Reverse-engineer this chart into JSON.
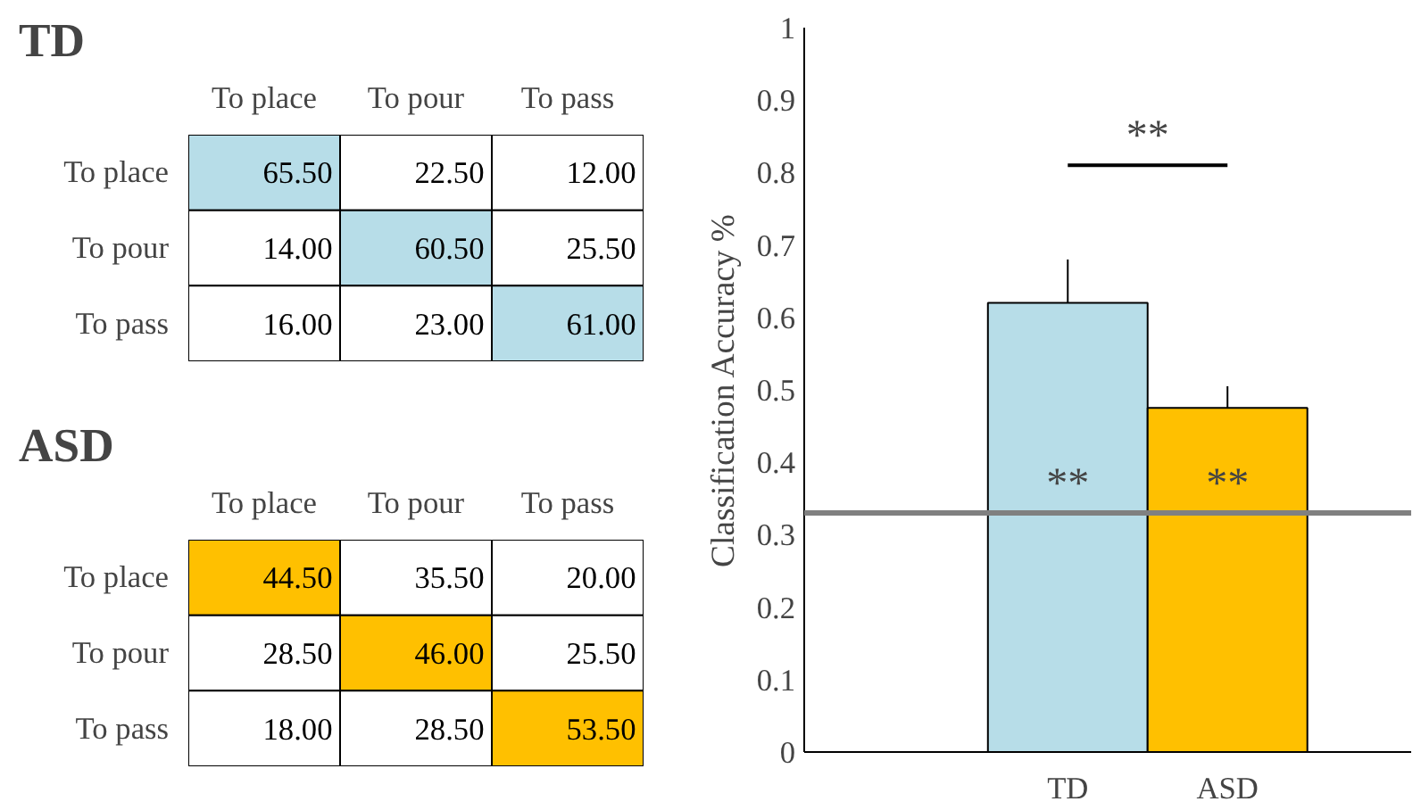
{
  "chart_data": [
    {
      "type": "heatmap",
      "title": "TD",
      "categories": [
        "To place",
        "To pour",
        "To pass"
      ],
      "y_categories": [
        "To place",
        "To pour",
        "To pass"
      ],
      "cells": [
        [
          65.5,
          22.5,
          12.0
        ],
        [
          14.0,
          60.5,
          25.5
        ],
        [
          16.0,
          23.0,
          61.0
        ]
      ],
      "color": "#b7dde8",
      "cell_labels": [
        [
          "65.50",
          "22.50",
          "12.00"
        ],
        [
          "14.00",
          "60.50",
          "25.50"
        ],
        [
          "16.00",
          "23.00",
          "61.00"
        ]
      ]
    },
    {
      "type": "heatmap",
      "title": "ASD",
      "categories": [
        "To place",
        "To pour",
        "To pass"
      ],
      "y_categories": [
        "To place",
        "To pour",
        "To pass"
      ],
      "cells": [
        [
          44.5,
          35.5,
          20.0
        ],
        [
          28.5,
          46.0,
          25.5
        ],
        [
          18.0,
          28.5,
          53.5
        ]
      ],
      "color": "#ffc000",
      "cell_labels": [
        [
          "44.50",
          "35.50",
          "20.00"
        ],
        [
          "28.50",
          "46.00",
          "25.50"
        ],
        [
          "18.00",
          "28.50",
          "53.50"
        ]
      ]
    },
    {
      "type": "bar",
      "ylabel": "Classification Accuracy %",
      "categories": [
        "TD",
        "ASD"
      ],
      "values": [
        0.62,
        0.475
      ],
      "colors": [
        "#b7dde8",
        "#ffc000"
      ],
      "errors": [
        0.06,
        0.03
      ],
      "ylim": [
        0,
        1
      ],
      "yticks": [
        0,
        0.1,
        0.2,
        0.3,
        0.4,
        0.5,
        0.6,
        0.7,
        0.8,
        0.9,
        1
      ],
      "grid": false,
      "ref_lines": [
        {
          "axis": "y",
          "value": 0.33,
          "color": "#808080"
        }
      ],
      "annotations": [
        "**",
        "**",
        "**"
      ]
    }
  ]
}
